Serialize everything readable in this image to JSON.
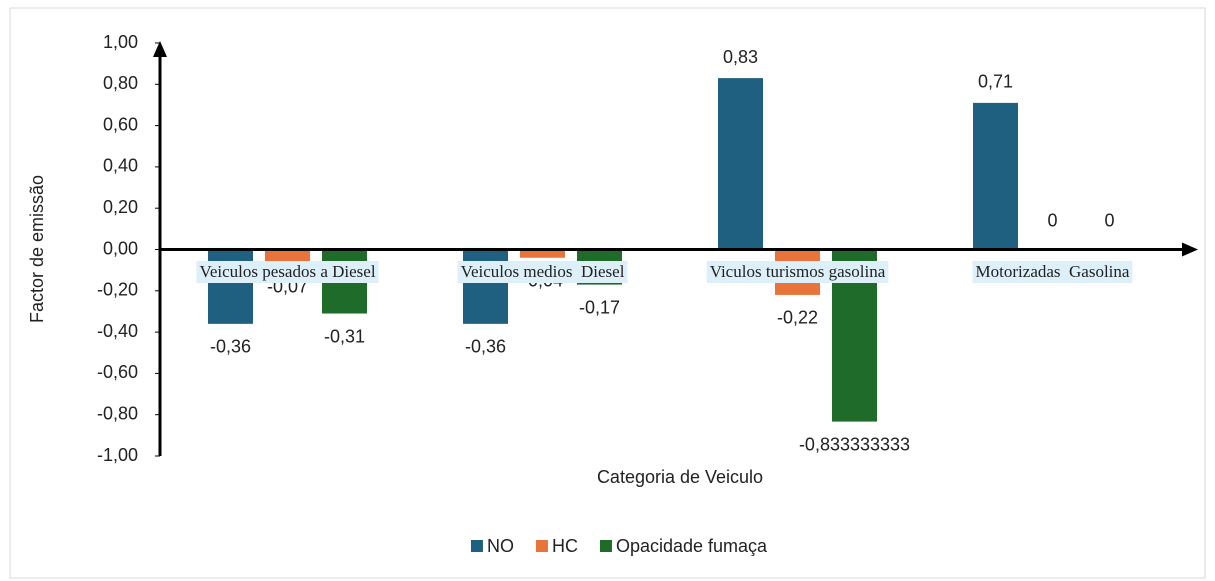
{
  "chart_data": {
    "type": "bar",
    "categories": [
      "Veiculos pesados a Diesel",
      "Veiculos medios  Diesel",
      "Viculos turismos gasolina",
      "Motorizadas  Gasolina"
    ],
    "series": [
      {
        "name": "NO",
        "color": "#1f5f80",
        "values": [
          -0.36,
          -0.36,
          0.83,
          0.71
        ],
        "value_labels": [
          "-0,36",
          "-0,36",
          "0,83",
          "0,71"
        ]
      },
      {
        "name": "HC",
        "color": "#e8743b",
        "values": [
          -0.07,
          -0.04,
          -0.22,
          0
        ],
        "value_labels": [
          "-0,07",
          "-0,04",
          "-0,22",
          "0"
        ]
      },
      {
        "name": "Opacidade fumaça",
        "color": "#1e6b2a",
        "values": [
          -0.31,
          -0.17,
          -0.833333333,
          0
        ],
        "value_labels": [
          "-0,31",
          "-0,17",
          "-0,833333333",
          "0"
        ]
      }
    ],
    "x_label": "Categoria de Veiculo",
    "y_label": "Factor de emissão",
    "ylim": [
      -1,
      1
    ],
    "yticks": [
      {
        "value": -1,
        "label": "-1,00"
      },
      {
        "value": -0.8,
        "label": "-0,80"
      },
      {
        "value": -0.6,
        "label": "-0,60"
      },
      {
        "value": -0.4,
        "label": "-0,40"
      },
      {
        "value": -0.2,
        "label": "-0,20"
      },
      {
        "value": 0,
        "label": "0,00"
      },
      {
        "value": 0.2,
        "label": "0,20"
      },
      {
        "value": 0.4,
        "label": "0,40"
      },
      {
        "value": 0.6,
        "label": "0,60"
      },
      {
        "value": 0.8,
        "label": "0,80"
      },
      {
        "value": 1,
        "label": "1,00"
      }
    ],
    "grid": false,
    "legend": "bottom"
  }
}
